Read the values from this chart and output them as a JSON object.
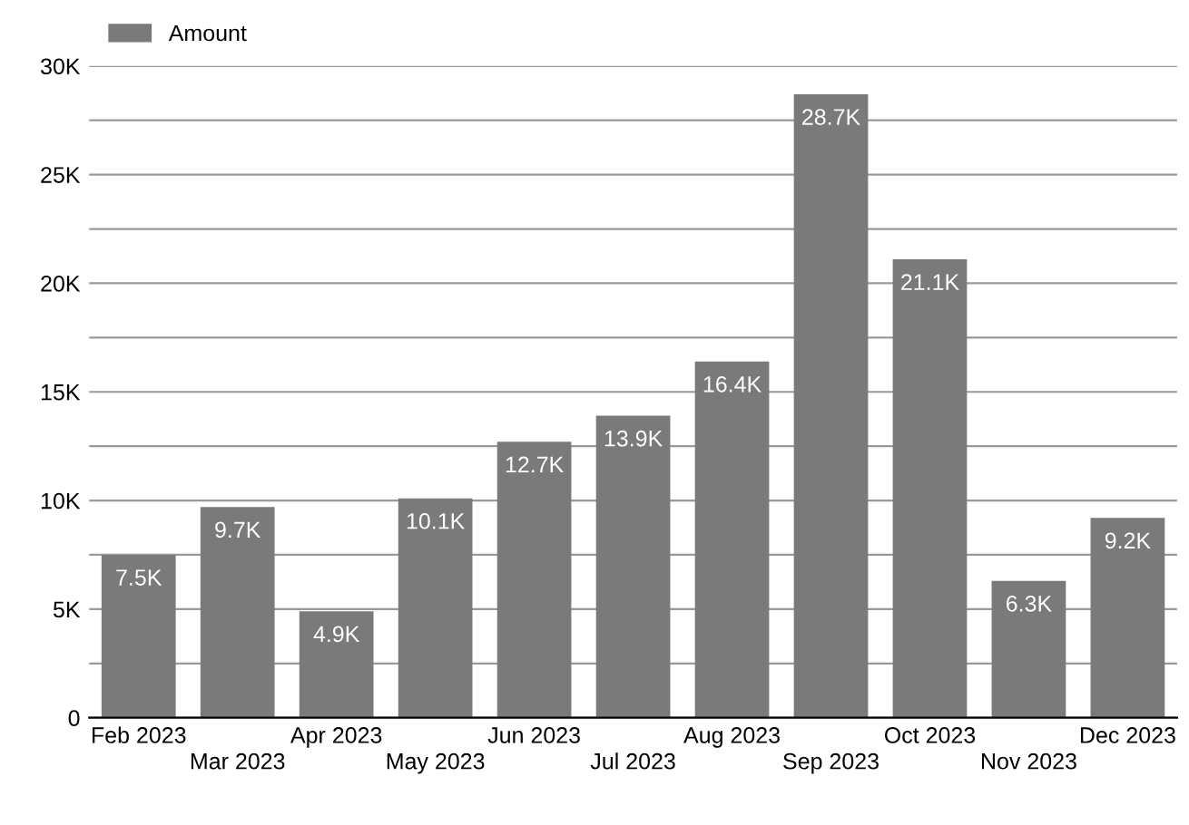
{
  "chart_data": {
    "type": "bar",
    "categories": [
      "Feb 2023",
      "Mar 2023",
      "Apr 2023",
      "May 2023",
      "Jun 2023",
      "Jul 2023",
      "Aug 2023",
      "Sep 2023",
      "Oct 2023",
      "Nov 2023",
      "Dec 2023"
    ],
    "series": [
      {
        "name": "Amount",
        "color": "#7a7a7a",
        "values": [
          7500,
          9700,
          4900,
          10100,
          12700,
          13900,
          16400,
          28700,
          21100,
          6300,
          9200
        ],
        "value_labels": [
          "7.5K",
          "9.7K",
          "4.9K",
          "10.1K",
          "12.7K",
          "13.9K",
          "16.4K",
          "28.7K",
          "21.1K",
          "6.3K",
          "9.2K"
        ]
      }
    ],
    "ylim": [
      0,
      30000
    ],
    "yticks": [
      {
        "value": 0,
        "label": "0"
      },
      {
        "value": 2500,
        "label": null
      },
      {
        "value": 5000,
        "label": "5K"
      },
      {
        "value": 7500,
        "label": null
      },
      {
        "value": 10000,
        "label": "10K"
      },
      {
        "value": 12500,
        "label": null
      },
      {
        "value": 15000,
        "label": "15K"
      },
      {
        "value": 17500,
        "label": null
      },
      {
        "value": 20000,
        "label": "20K"
      },
      {
        "value": 22500,
        "label": null
      },
      {
        "value": 25000,
        "label": "25K"
      },
      {
        "value": 27500,
        "label": null
      },
      {
        "value": 30000,
        "label": "30K"
      }
    ],
    "grid": "y",
    "legend": "top left"
  }
}
